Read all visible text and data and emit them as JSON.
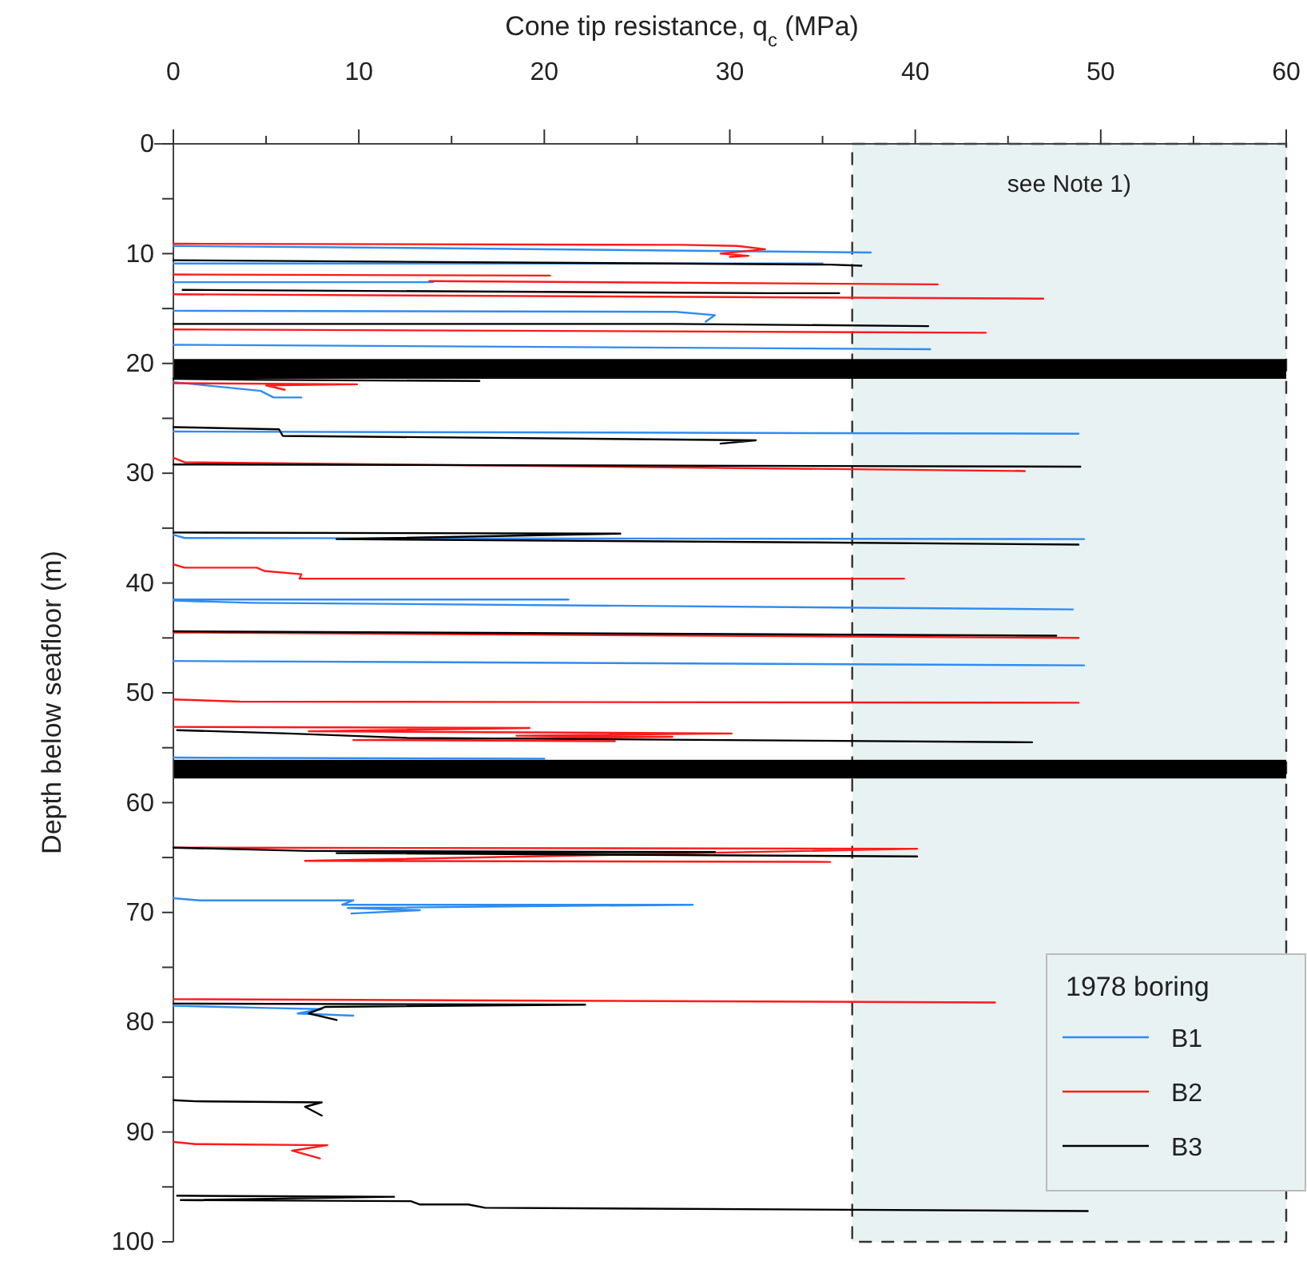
{
  "chart_data": {
    "type": "line",
    "xlabel": "Cone tip resistance, q$_{c}$ (MPa)",
    "ylabel": "Depth below seafloor (m)",
    "legend_title": "1978 boring",
    "legend": "bottom right",
    "line_style": "solid",
    "grid": false,
    "xlim": [
      0,
      60
    ],
    "xticks": [
      0,
      {
        "value": 5,
        "label": null
      },
      10,
      {
        "value": 15,
        "label": null
      },
      20,
      {
        "value": 25,
        "label": null
      },
      30,
      {
        "value": 35,
        "label": null
      },
      40,
      {
        "value": 45,
        "label": null
      },
      50,
      {
        "value": 55,
        "label": null
      },
      60
    ],
    "ylim": [
      100,
      0
    ],
    "yticks": [
      0,
      {
        "value": 5,
        "label": null
      },
      10,
      {
        "value": 15,
        "label": null
      },
      20,
      {
        "value": 25,
        "label": null
      },
      30,
      {
        "value": 35,
        "label": null
      },
      40,
      {
        "value": 45,
        "label": null
      },
      50,
      {
        "value": 55,
        "label": null
      },
      60,
      {
        "value": 65,
        "label": null
      },
      70,
      {
        "value": 75,
        "label": null
      },
      80,
      {
        "value": 85,
        "label": null
      },
      90,
      {
        "value": 95,
        "label": null
      },
      100
    ],
    "bands": [
      {
        "axis": "x",
        "from": 36.6,
        "to": 60,
        "label": "see Note 1)",
        "color": "#e9f2f3"
      },
      {
        "axis": "y",
        "from": 19.6,
        "to": 21.4,
        "color": "#000000"
      },
      {
        "axis": "y",
        "from": 56.1,
        "to": 57.8,
        "color": "#000000"
      }
    ],
    "series": [
      {
        "name": "B1",
        "color": "#2f8cf0",
        "x": [
          0,
          13.9,
          37.6,
          null,
          0,
          35,
          null,
          0,
          14,
          null,
          0,
          27.1,
          29.2,
          28.7,
          null,
          0,
          40.8,
          null,
          0,
          4.7,
          5.4,
          6.9,
          null,
          0,
          48.8,
          null,
          0,
          0.6,
          49.1,
          null,
          0,
          21.3,
          null,
          0,
          4.2,
          48.5,
          null,
          0,
          49.1,
          null,
          0,
          20,
          null,
          0,
          1.4,
          9.7,
          9.1,
          28.0,
          9.4,
          13.3,
          9.6,
          null,
          0,
          5.1,
          8.0,
          6.7,
          9.7
        ],
        "values": [
          9.3,
          9.5,
          9.9,
          null,
          10.9,
          10.9,
          null,
          12.6,
          12.6,
          null,
          15.2,
          15.3,
          15.6,
          16.2,
          null,
          18.3,
          18.7,
          null,
          21.7,
          22.5,
          23.1,
          23.1,
          null,
          26.2,
          26.4,
          null,
          35.6,
          35.9,
          36.0,
          null,
          41.5,
          41.5,
          null,
          41.6,
          41.8,
          42.4,
          null,
          47.1,
          47.5,
          null,
          55.9,
          56.0,
          null,
          68.7,
          68.9,
          68.9,
          69.3,
          69.3,
          69.6,
          69.8,
          70.1,
          null,
          78.5,
          78.7,
          78.8,
          79.2,
          79.4
        ]
      },
      {
        "name": "B2",
        "color": "#ff1a1a",
        "x": [
          0,
          27.4,
          30.4,
          31.9,
          29.5,
          31,
          30,
          null,
          0,
          20.3,
          null,
          13.8,
          41.2,
          null,
          0,
          46.9,
          null,
          0,
          43.8,
          null,
          0,
          9.9,
          5.0,
          6.0,
          null,
          0,
          0.6,
          45.9,
          null,
          0,
          0.6,
          4.5,
          4.9,
          6.9,
          6.8,
          39.4,
          null,
          0,
          48.8,
          null,
          0,
          3.6,
          48.8,
          null,
          0,
          19.2,
          7.3,
          30.1,
          18.5,
          26.9,
          9.7,
          23.8,
          null,
          0,
          40.1,
          7.1,
          35.4,
          null,
          0,
          15.0,
          44.3,
          null,
          0,
          1.2,
          8.3,
          6.4,
          7.9
        ],
        "values": [
          9.1,
          9.2,
          9.3,
          9.6,
          10.0,
          10.2,
          10.3,
          null,
          11.9,
          12.0,
          null,
          12.5,
          12.8,
          null,
          13.7,
          14.1,
          null,
          16.9,
          17.2,
          null,
          21.8,
          21.9,
          22.0,
          22.4,
          null,
          28.6,
          29.0,
          29.8,
          null,
          38.3,
          38.6,
          38.6,
          38.9,
          39.2,
          39.6,
          39.6,
          null,
          44.5,
          45.0,
          null,
          50.6,
          50.8,
          50.9,
          null,
          53.1,
          53.2,
          53.5,
          53.7,
          53.9,
          54.0,
          54.3,
          54.4,
          null,
          64.1,
          64.2,
          65.3,
          65.4,
          null,
          77.9,
          78.0,
          78.2,
          null,
          90.9,
          91.1,
          91.2,
          91.7,
          92.4
        ]
      },
      {
        "name": "B3",
        "color": "#000000",
        "x": [
          0,
          35.4,
          37.1,
          null,
          0.5,
          32,
          35.9,
          null,
          0,
          27.1,
          40.7,
          null,
          0,
          4.8,
          16.5,
          null,
          0,
          5.7,
          5.9,
          31.4,
          29.5,
          null,
          0,
          48.9,
          null,
          0,
          24.1,
          8.8,
          34.2,
          48.8,
          null,
          0,
          47.6,
          null,
          0.2,
          6.2,
          12.6,
          46.3,
          null,
          0,
          7.3,
          29.2,
          8.8,
          40.1,
          null,
          0,
          22.2,
          8.2,
          7.3,
          8.8,
          null,
          0,
          1.2,
          8.0,
          7.1,
          8.0,
          null,
          0.2,
          11.9,
          0.4,
          12.8,
          13.3,
          15.9,
          16.8,
          49.3
        ],
        "values": [
          10.6,
          11.0,
          11.1,
          null,
          13.3,
          13.6,
          13.6,
          null,
          16.4,
          16.4,
          16.6,
          null,
          21.4,
          21.5,
          21.6,
          null,
          25.8,
          26.0,
          26.6,
          27.0,
          27.3,
          null,
          29.2,
          29.4,
          null,
          35.4,
          35.5,
          36.0,
          36.3,
          36.5,
          null,
          44.4,
          44.8,
          null,
          53.4,
          53.7,
          54.1,
          54.5,
          null,
          64.1,
          64.4,
          64.5,
          64.6,
          64.9,
          null,
          78.3,
          78.4,
          78.6,
          79.2,
          79.8,
          null,
          87.1,
          87.2,
          87.3,
          87.7,
          88.5,
          null,
          95.8,
          95.9,
          96.2,
          96.3,
          96.6,
          96.6,
          96.9,
          97.2
        ]
      }
    ]
  }
}
